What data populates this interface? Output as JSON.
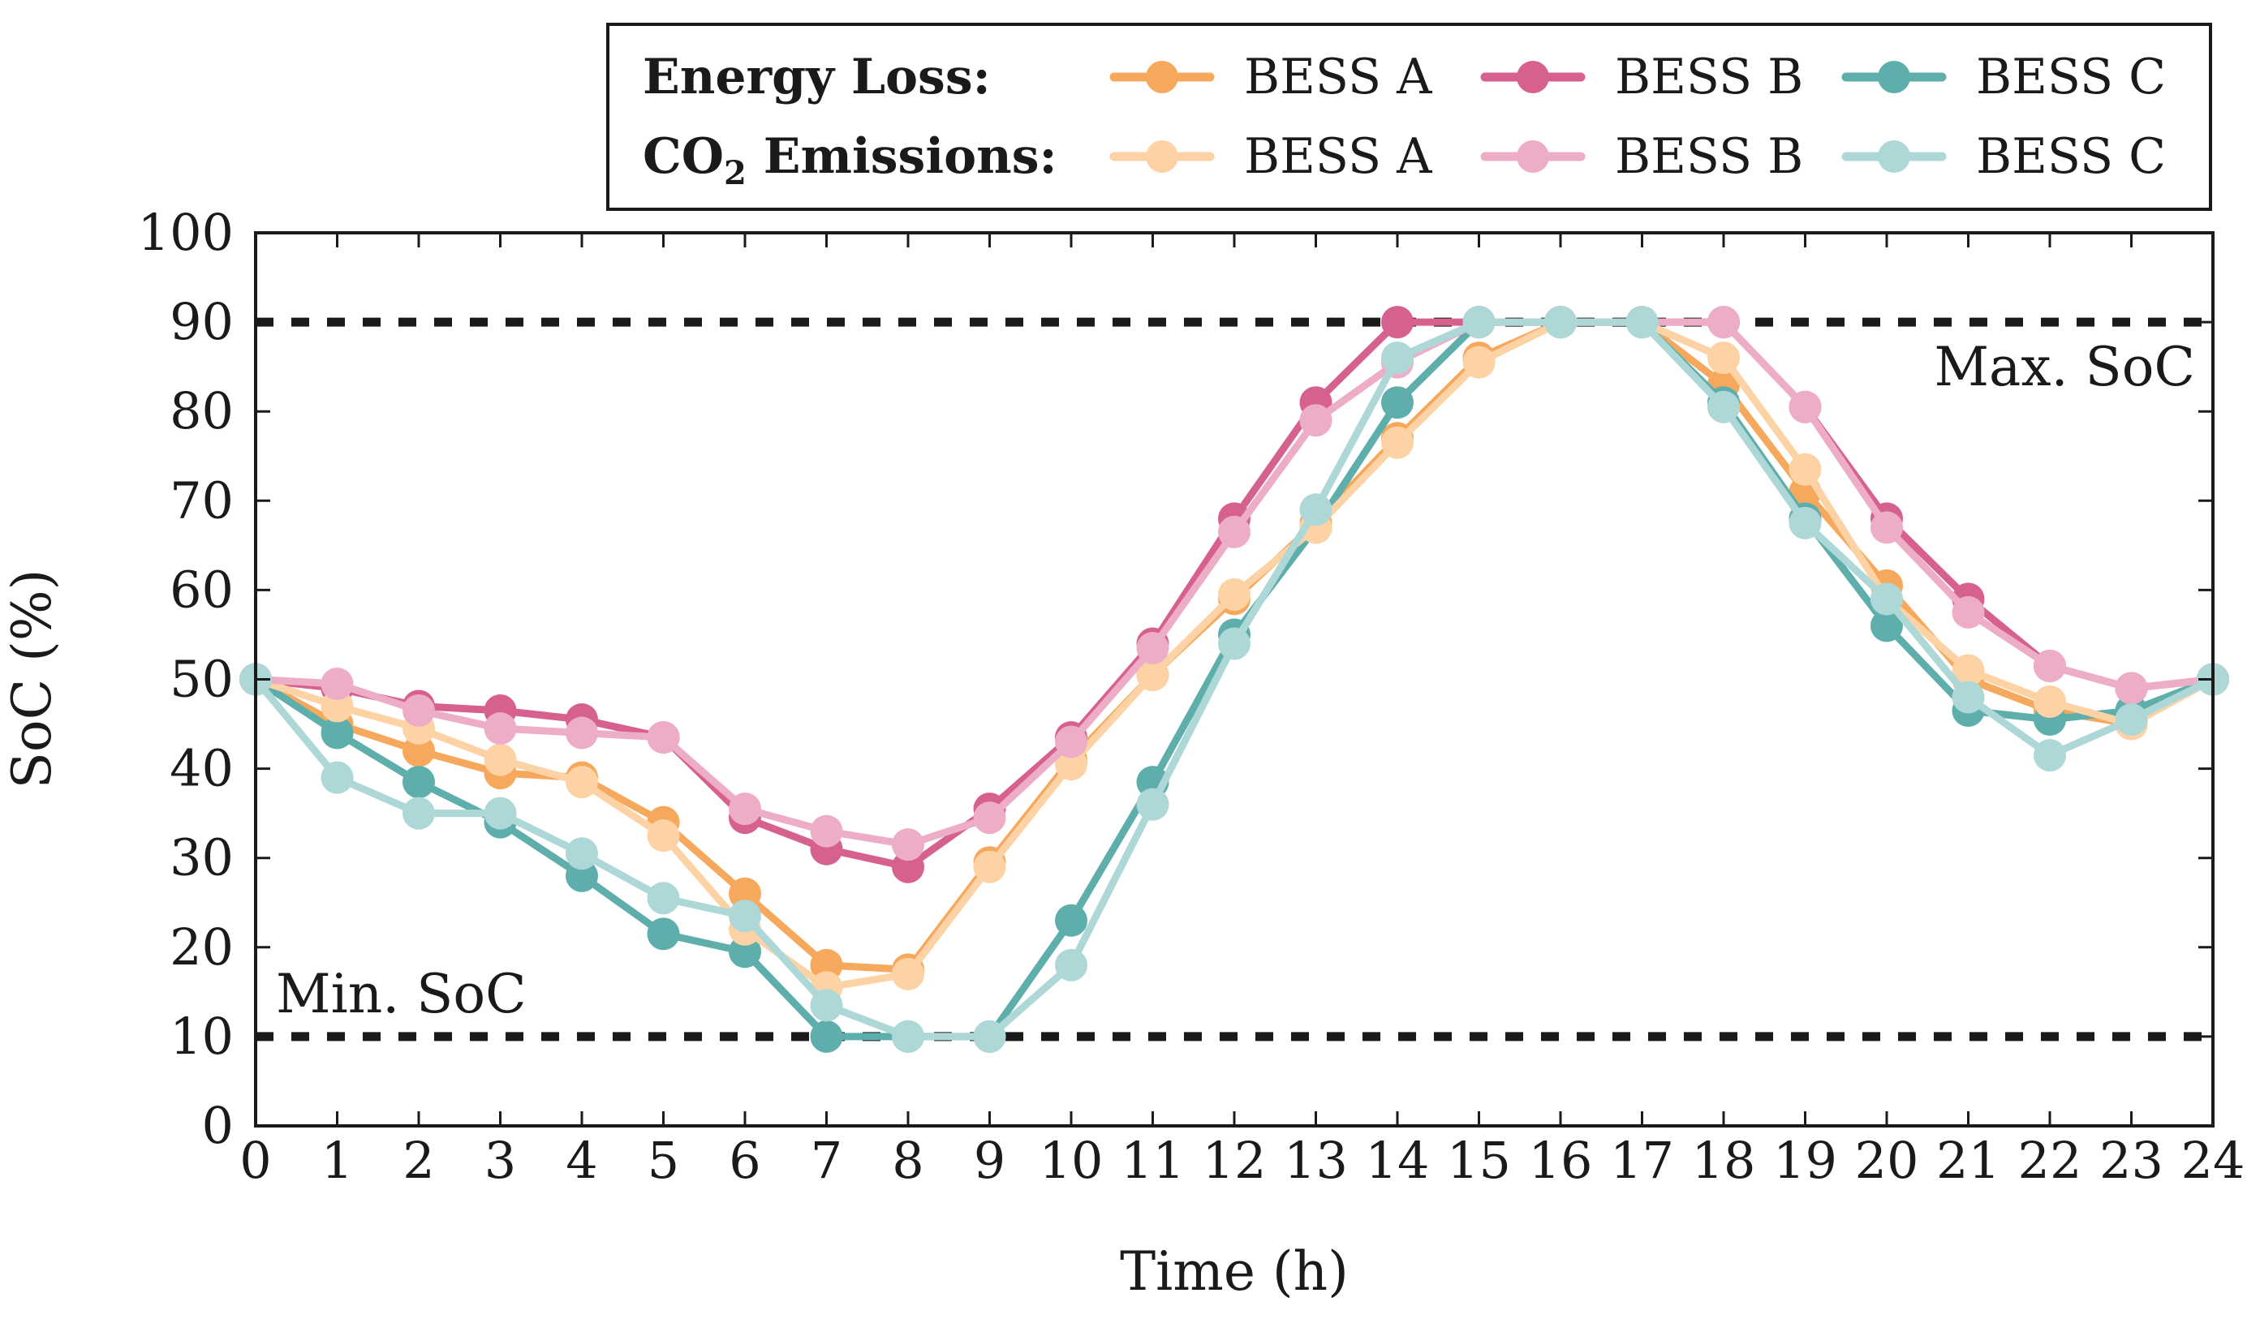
{
  "chart_data": {
    "type": "line",
    "xlabel": "Time (h)",
    "ylabel": "SoC (%)",
    "xlim": [
      0,
      24
    ],
    "ylim": [
      0,
      100
    ],
    "x_ticks": [
      0,
      1,
      2,
      3,
      4,
      5,
      6,
      7,
      8,
      9,
      10,
      11,
      12,
      13,
      14,
      15,
      16,
      17,
      18,
      19,
      20,
      21,
      22,
      23,
      24
    ],
    "y_ticks": [
      0,
      10,
      20,
      30,
      40,
      50,
      60,
      70,
      80,
      90,
      100
    ],
    "grid": false,
    "legend_position": "top-right, outside above plot",
    "legend_groups": [
      {
        "label": "Energy Loss:"
      },
      {
        "label_main": "CO",
        "label_sub": "2",
        "label_rest": " Emissions:"
      }
    ],
    "x": [
      0,
      1,
      2,
      3,
      4,
      5,
      6,
      7,
      8,
      9,
      10,
      11,
      12,
      13,
      14,
      15,
      16,
      17,
      18,
      19,
      20,
      21,
      22,
      23,
      24
    ],
    "series": [
      {
        "name": "BESS A",
        "group": "Energy Loss",
        "color": "#f6a95c",
        "values": [
          50,
          45,
          42,
          39.5,
          39,
          34,
          26,
          18,
          17.5,
          29.5,
          41,
          50.5,
          59,
          67.5,
          77,
          86,
          90,
          90,
          83,
          71,
          60.5,
          50,
          46.5,
          45,
          50
        ]
      },
      {
        "name": "BESS B",
        "group": "Energy Loss",
        "color": "#d6618f",
        "values": [
          50,
          49,
          47,
          46.5,
          45.5,
          43.5,
          34.5,
          31,
          29,
          35.5,
          43.5,
          54,
          68,
          81,
          90,
          90,
          90,
          90,
          90,
          80.5,
          68,
          59,
          51.5,
          49,
          50
        ]
      },
      {
        "name": "BESS C",
        "group": "Energy Loss",
        "color": "#5eaeac",
        "values": [
          50,
          44,
          38.5,
          34,
          28,
          21.5,
          19.5,
          10,
          10,
          10,
          23,
          38.5,
          55,
          67,
          81,
          90,
          90,
          90,
          81,
          68,
          56,
          46.5,
          45.5,
          46.5,
          50
        ]
      },
      {
        "name": "BESS A",
        "group": "CO2 Emissions",
        "color": "#fdd3a6",
        "values": [
          50,
          47,
          44.5,
          41,
          38.5,
          32.5,
          22,
          15.5,
          17,
          29,
          40.5,
          50.5,
          59.5,
          67,
          76.5,
          85.5,
          90,
          90,
          86,
          73.5,
          59,
          51,
          47.5,
          45,
          50
        ]
      },
      {
        "name": "BESS B",
        "group": "CO2 Emissions",
        "color": "#eeadc6",
        "values": [
          50,
          49.5,
          46.5,
          44.5,
          44,
          43.5,
          35.5,
          33,
          31.5,
          34.5,
          43,
          53.5,
          66.5,
          79,
          85.5,
          90,
          90,
          90,
          90,
          80.5,
          67,
          57.5,
          51.5,
          49,
          50
        ]
      },
      {
        "name": "BESS C",
        "group": "CO2 Emissions",
        "color": "#add8d7",
        "values": [
          50,
          39,
          35,
          35,
          30.5,
          25.5,
          23.5,
          13.5,
          10,
          10,
          18,
          36,
          54,
          69,
          86,
          90,
          90,
          90,
          80.5,
          67.5,
          59,
          48,
          41.5,
          45.5,
          50
        ]
      }
    ],
    "reference_lines": [
      {
        "y": 90,
        "label": "Max. SoC"
      },
      {
        "y": 10,
        "label": "Min. SoC"
      }
    ]
  }
}
